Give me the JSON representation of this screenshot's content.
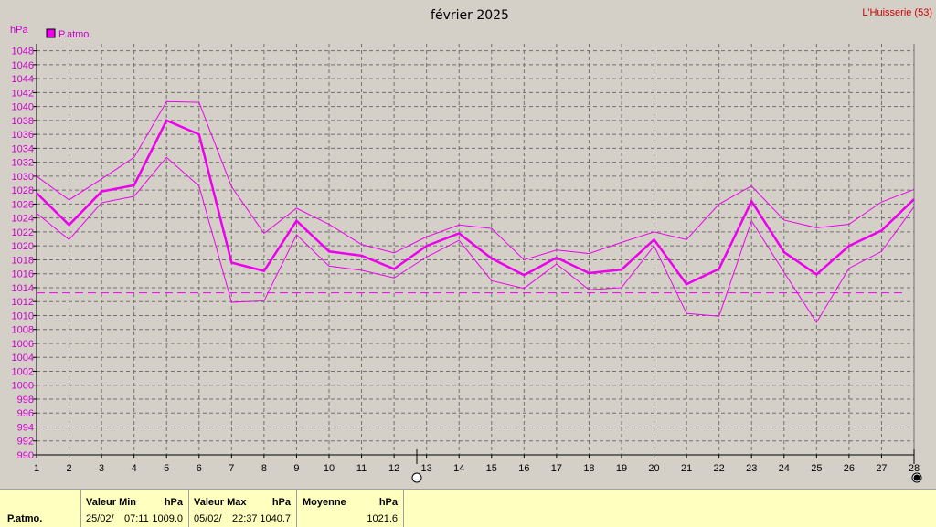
{
  "chart_data": {
    "type": "line",
    "title": "février 2025",
    "station": "L'Huisserie (53)",
    "ylabel": "hPa",
    "ylim": [
      990,
      1049
    ],
    "ytick_step": 2,
    "x": [
      1,
      2,
      3,
      4,
      5,
      6,
      7,
      8,
      9,
      10,
      11,
      12,
      13,
      14,
      15,
      16,
      17,
      18,
      19,
      20,
      21,
      22,
      23,
      24,
      25,
      26,
      27,
      28
    ],
    "xlim": [
      1,
      28
    ],
    "legend": "P.atmo.",
    "grid": true,
    "series": [
      {
        "name": "P.atmo.",
        "role": "mean",
        "values": [
          1027.6,
          1023.0,
          1027.8,
          1028.7,
          1038.0,
          1036.0,
          1017.6,
          1016.4,
          1023.6,
          1019.2,
          1018.6,
          1016.7,
          1020.0,
          1021.8,
          1018.2,
          1015.8,
          1018.3,
          1016.1,
          1016.6,
          1020.9,
          1014.5,
          1016.7,
          1026.4,
          1019.1,
          1015.9,
          1020.0,
          1022.2,
          1026.7
        ],
        "color": "#ee00ee"
      },
      {
        "role": "max",
        "values": [
          1030.0,
          1026.6,
          1029.6,
          1032.7,
          1040.7,
          1040.6,
          1028.5,
          1021.8,
          1025.4,
          1023.1,
          1020.2,
          1019.0,
          1021.3,
          1023.0,
          1022.5,
          1018.0,
          1019.4,
          1018.9,
          1020.5,
          1022.0,
          1020.9,
          1026.0,
          1028.6,
          1023.7,
          1022.6,
          1023.1,
          1026.3,
          1028.1
        ],
        "color": "#ee00ee"
      },
      {
        "role": "min",
        "values": [
          1024.7,
          1020.9,
          1026.2,
          1027.1,
          1032.7,
          1028.6,
          1011.9,
          1012.1,
          1021.6,
          1017.1,
          1016.5,
          1015.4,
          1018.4,
          1020.8,
          1015.0,
          1013.9,
          1017.4,
          1013.7,
          1014.0,
          1020.0,
          1010.3,
          1009.9,
          1023.6,
          1016.2,
          1009.0,
          1016.8,
          1019.2,
          1025.6
        ],
        "color": "#ee00ee"
      }
    ],
    "reference_line": {
      "value": 1013.25,
      "style": "dashed"
    },
    "moon_markers": [
      {
        "day": 12.7,
        "phase": "full-moon"
      },
      {
        "day": 28,
        "phase": "new-moon"
      }
    ]
  },
  "stats": {
    "row_label": "P.atmo.",
    "min": {
      "header": "Valeur Min",
      "unit": "hPa",
      "date": "25/02/",
      "time": "07:11",
      "value": "1009.0"
    },
    "max": {
      "header": "Valeur Max",
      "unit": "hPa",
      "date": "05/02/",
      "time": "22:37",
      "value": "1040.7"
    },
    "mean": {
      "header": "Moyenne",
      "unit": "hPa",
      "value": "1021.6"
    }
  },
  "colors": {
    "background": "#d4d0c8",
    "series": "#ee00ee",
    "axis_text": "#cc00cc",
    "station": "#cc0000",
    "stats_bg": "#ffffc0"
  }
}
